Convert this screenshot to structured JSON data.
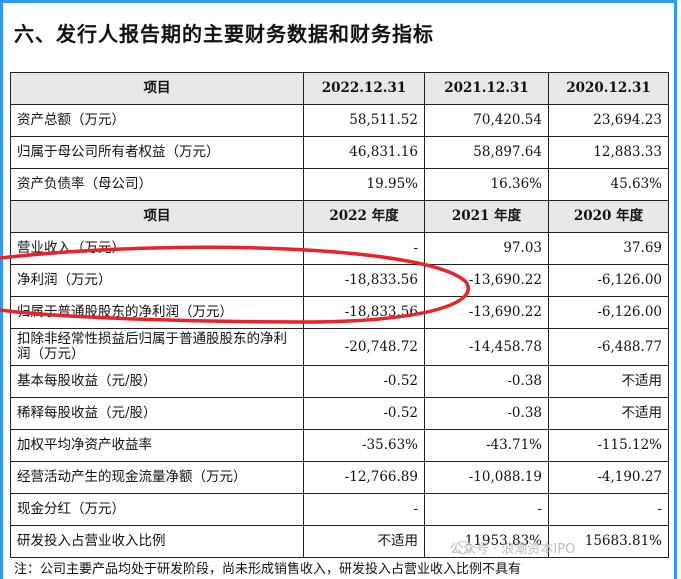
{
  "section_title": "六、发行人报告期的主要财务数据和财务指标",
  "table": {
    "head1": [
      "项目",
      "2022.12.31",
      "2021.12.31",
      "2020.12.31"
    ],
    "rows1": [
      [
        "资产总额（万元）",
        "58,511.52",
        "70,420.54",
        "23,694.23"
      ],
      [
        "归属于母公司所有者权益（万元）",
        "46,831.16",
        "58,897.64",
        "12,883.33"
      ],
      [
        "资产负债率（母公司）",
        "19.95%",
        "16.36%",
        "45.63%"
      ]
    ],
    "head2": [
      "项目",
      "2022 年度",
      "2021 年度",
      "2020 年度"
    ],
    "rows2": [
      [
        "营业收入（万元）",
        "-",
        "97.03",
        "37.69"
      ],
      [
        "净利润（万元）",
        "-18,833.56",
        "-13,690.22",
        "-6,126.00"
      ],
      [
        "归属于普通股股东的净利润（万元）",
        "-18,833.56",
        "-13,690.22",
        "-6,126.00"
      ],
      [
        "扣除非经常性损益后归属于普通股股东的净利润（万元）",
        "-20,748.72",
        "-14,458.78",
        "-6,488.77"
      ],
      [
        "基本每股收益（元/股）",
        "-0.52",
        "-0.38",
        "不适用"
      ],
      [
        "稀释每股收益（元/股）",
        "-0.52",
        "-0.38",
        "不适用"
      ],
      [
        "加权平均净资产收益率",
        "-35.63%",
        "-43.71%",
        "-115.12%"
      ],
      [
        "经营活动产生的现金流量净额（万元）",
        "-12,766.89",
        "-10,088.19",
        "-4,190.27"
      ],
      [
        "现金分红（万元）",
        "-",
        "-",
        "-"
      ],
      [
        "研发投入占营业收入比例",
        "不适用",
        "11953.83%",
        "15683.81%"
      ]
    ]
  },
  "footnote": "注：公司主要产品均处于研发阶段，尚未形成销售收入，研发投入占营业收入比例不具有",
  "watermark": "公众号 · 浪潮资本IPO",
  "colors": {
    "frame": "#2f9bf0",
    "highlight_ellipse": "#e8232a",
    "header_fill": "#e8e8e8"
  }
}
